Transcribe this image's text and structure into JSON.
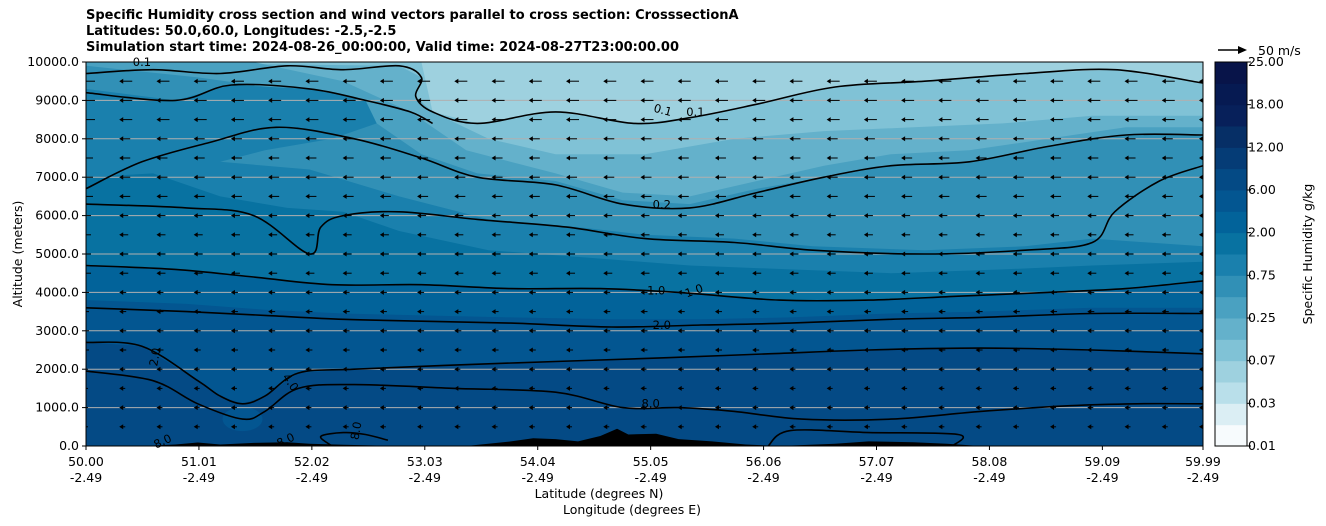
{
  "title": {
    "line1": "Specific Humidity cross section and wind vectors parallel to cross section: CrosssectionA",
    "line2": "Latitudes: 50.0,60.0, Longitudes: -2.5,-2.5",
    "line3": "Simulation start time: 2024-08-26_00:00:00, Valid time: 2024-08-27T23:00:00.00"
  },
  "colors": {
    "q0": "#f7fbfd",
    "q1": "#dbeef4",
    "q2": "#b9dfea",
    "q3": "#9ed1df",
    "q4": "#80c2d6",
    "q5": "#64b1cb",
    "q6": "#4aa1c1",
    "q7": "#3190b6",
    "q8": "#1a80ad",
    "q9": "#0872a1",
    "q10": "#02639a",
    "q11": "#035691",
    "q12": "#044a85",
    "q13": "#053c76",
    "q14": "#062f66",
    "q15": "#07205a",
    "terrain": "#000000",
    "gridline": "#b0b0b0"
  },
  "chart_data": {
    "type": "contour",
    "variable": "Specific Humidity",
    "units": "g/kg",
    "xlabel": "Latitude (degrees N)",
    "xlabel2": "Longitude (degrees E)",
    "ylabel": "Altitude (meters)",
    "ylim": [
      0,
      10000
    ],
    "xlim": [
      50.0,
      59.99
    ],
    "yticks": [
      "0.0",
      "1000.0",
      "2000.0",
      "3000.0",
      "4000.0",
      "5000.0",
      "6000.0",
      "7000.0",
      "8000.0",
      "9000.0",
      "10000.0"
    ],
    "xticks_lat": [
      "50.00",
      "51.01",
      "52.02",
      "53.03",
      "54.04",
      "55.05",
      "56.06",
      "57.07",
      "58.08",
      "59.09",
      "59.99"
    ],
    "xticks_lon": [
      "-2.49",
      "-2.49",
      "-2.49",
      "-2.49",
      "-2.49",
      "-2.49",
      "-2.49",
      "-2.49",
      "-2.49",
      "-2.49",
      "-2.49"
    ],
    "colorbar": {
      "label": "Specific Humidity g/kg",
      "ticks": [
        "0.01",
        "0.03",
        "0.07",
        "0.25",
        "0.75",
        "2.00",
        "6.00",
        "12.00",
        "18.00",
        "25.00"
      ]
    },
    "wind_reference": "50 m/s",
    "contour_labels": [
      "0.1",
      "0.1",
      "0.1",
      "0.2",
      "1.0",
      "1.0",
      "2.0",
      "2.0",
      "4.0",
      "8.0",
      "8.0",
      "8.0",
      "8.0"
    ],
    "contours": [
      {
        "level": "0.1",
        "points": [
          [
            50.0,
            9700
          ],
          [
            50.6,
            9800
          ],
          [
            51.2,
            9700
          ],
          [
            51.8,
            9900
          ],
          [
            52.3,
            9800
          ],
          [
            52.8,
            9900
          ],
          [
            53.0,
            9600
          ],
          [
            52.95,
            9100
          ],
          [
            53.1,
            8700
          ],
          [
            53.5,
            8400
          ],
          [
            54.2,
            8700
          ],
          [
            54.9,
            8400
          ],
          [
            55.4,
            8550
          ],
          [
            56.0,
            8900
          ],
          [
            56.7,
            9350
          ],
          [
            57.5,
            9500
          ],
          [
            58.4,
            9700
          ],
          [
            59.2,
            9800
          ],
          [
            59.99,
            9450
          ]
        ]
      },
      {
        "level": "0.1b",
        "points": [
          [
            50.0,
            9200
          ],
          [
            50.8,
            9000
          ],
          [
            51.3,
            9400
          ],
          [
            52.0,
            9300
          ],
          [
            52.5,
            9000
          ],
          [
            52.9,
            8700
          ],
          [
            53.1,
            8400
          ]
        ]
      },
      {
        "level": "0.2",
        "points": [
          [
            50.0,
            6700
          ],
          [
            50.5,
            7400
          ],
          [
            51.1,
            7900
          ],
          [
            51.7,
            8300
          ],
          [
            52.4,
            8000
          ],
          [
            53.0,
            7500
          ],
          [
            53.5,
            7000
          ],
          [
            54.2,
            6800
          ],
          [
            54.8,
            6300
          ],
          [
            55.4,
            6200
          ],
          [
            56.0,
            6600
          ],
          [
            56.6,
            7000
          ],
          [
            57.2,
            7300
          ],
          [
            57.9,
            7400
          ],
          [
            58.6,
            7800
          ],
          [
            59.3,
            8100
          ],
          [
            59.99,
            8100
          ]
        ]
      },
      {
        "level": "0.2b",
        "points": [
          [
            50.0,
            6300
          ],
          [
            50.9,
            6200
          ],
          [
            51.5,
            6000
          ],
          [
            52.0,
            5000
          ],
          [
            52.1,
            5700
          ],
          [
            52.3,
            6000
          ],
          [
            52.8,
            6100
          ],
          [
            53.5,
            5900
          ],
          [
            54.3,
            5700
          ],
          [
            55.0,
            5400
          ],
          [
            55.8,
            5300
          ],
          [
            56.5,
            5100
          ],
          [
            57.5,
            5000
          ],
          [
            58.4,
            5100
          ],
          [
            59.0,
            5300
          ],
          [
            59.2,
            6100
          ],
          [
            59.6,
            6900
          ],
          [
            59.99,
            7300
          ]
        ]
      },
      {
        "level": "1.0",
        "points": [
          [
            50.0,
            4700
          ],
          [
            50.8,
            4600
          ],
          [
            51.5,
            4400
          ],
          [
            52.2,
            4200
          ],
          [
            53.0,
            4200
          ],
          [
            53.8,
            4100
          ],
          [
            54.6,
            4100
          ],
          [
            55.3,
            4000
          ],
          [
            56.2,
            3800
          ],
          [
            57.0,
            3800
          ],
          [
            57.8,
            3900
          ],
          [
            58.6,
            4000
          ],
          [
            59.3,
            4100
          ],
          [
            59.99,
            4300
          ]
        ]
      },
      {
        "level": "2.0",
        "points": [
          [
            50.0,
            3600
          ],
          [
            50.9,
            3500
          ],
          [
            51.6,
            3400
          ],
          [
            52.3,
            3300
          ],
          [
            53.0,
            3250
          ],
          [
            53.8,
            3200
          ],
          [
            54.7,
            3100
          ],
          [
            55.5,
            3150
          ],
          [
            56.3,
            3200
          ],
          [
            57.2,
            3300
          ],
          [
            58.0,
            3350
          ],
          [
            59.0,
            3450
          ],
          [
            59.99,
            3450
          ]
        ]
      },
      {
        "level": "2.0b",
        "points": [
          [
            50.0,
            2700
          ],
          [
            50.5,
            2600
          ],
          [
            51.0,
            1700
          ],
          [
            51.2,
            1300
          ],
          [
            51.4,
            1100
          ],
          [
            51.6,
            1300
          ],
          [
            51.9,
            1900
          ],
          [
            52.4,
            2000
          ],
          [
            53.2,
            2100
          ],
          [
            54.2,
            2200
          ],
          [
            55.2,
            2300
          ],
          [
            56.1,
            2400
          ],
          [
            57.0,
            2500
          ],
          [
            58.0,
            2550
          ],
          [
            59.0,
            2500
          ],
          [
            59.99,
            2400
          ]
        ]
      },
      {
        "level": "4.0",
        "points": [
          [
            50.0,
            1950
          ],
          [
            50.6,
            1700
          ],
          [
            51.0,
            1100
          ],
          [
            51.4,
            700
          ],
          [
            51.6,
            900
          ],
          [
            51.9,
            1500
          ],
          [
            52.4,
            1600
          ],
          [
            53.3,
            1500
          ],
          [
            54.2,
            1400
          ],
          [
            54.8,
            1000
          ],
          [
            55.3,
            1000
          ],
          [
            55.8,
            900
          ],
          [
            56.4,
            700
          ],
          [
            57.2,
            700
          ],
          [
            58.0,
            900
          ],
          [
            58.8,
            1050
          ],
          [
            59.4,
            1100
          ],
          [
            59.99,
            1100
          ]
        ]
      },
      {
        "level": "8.0",
        "points": [
          [
            52.2,
            0
          ],
          [
            52.1,
            250
          ],
          [
            52.3,
            350
          ],
          [
            52.5,
            300
          ],
          [
            52.7,
            150
          ]
        ]
      },
      {
        "level": "8.0b",
        "points": [
          [
            56.1,
            0
          ],
          [
            56.3,
            400
          ],
          [
            57.0,
            350
          ],
          [
            57.8,
            300
          ],
          [
            57.75,
            0
          ]
        ]
      }
    ]
  }
}
